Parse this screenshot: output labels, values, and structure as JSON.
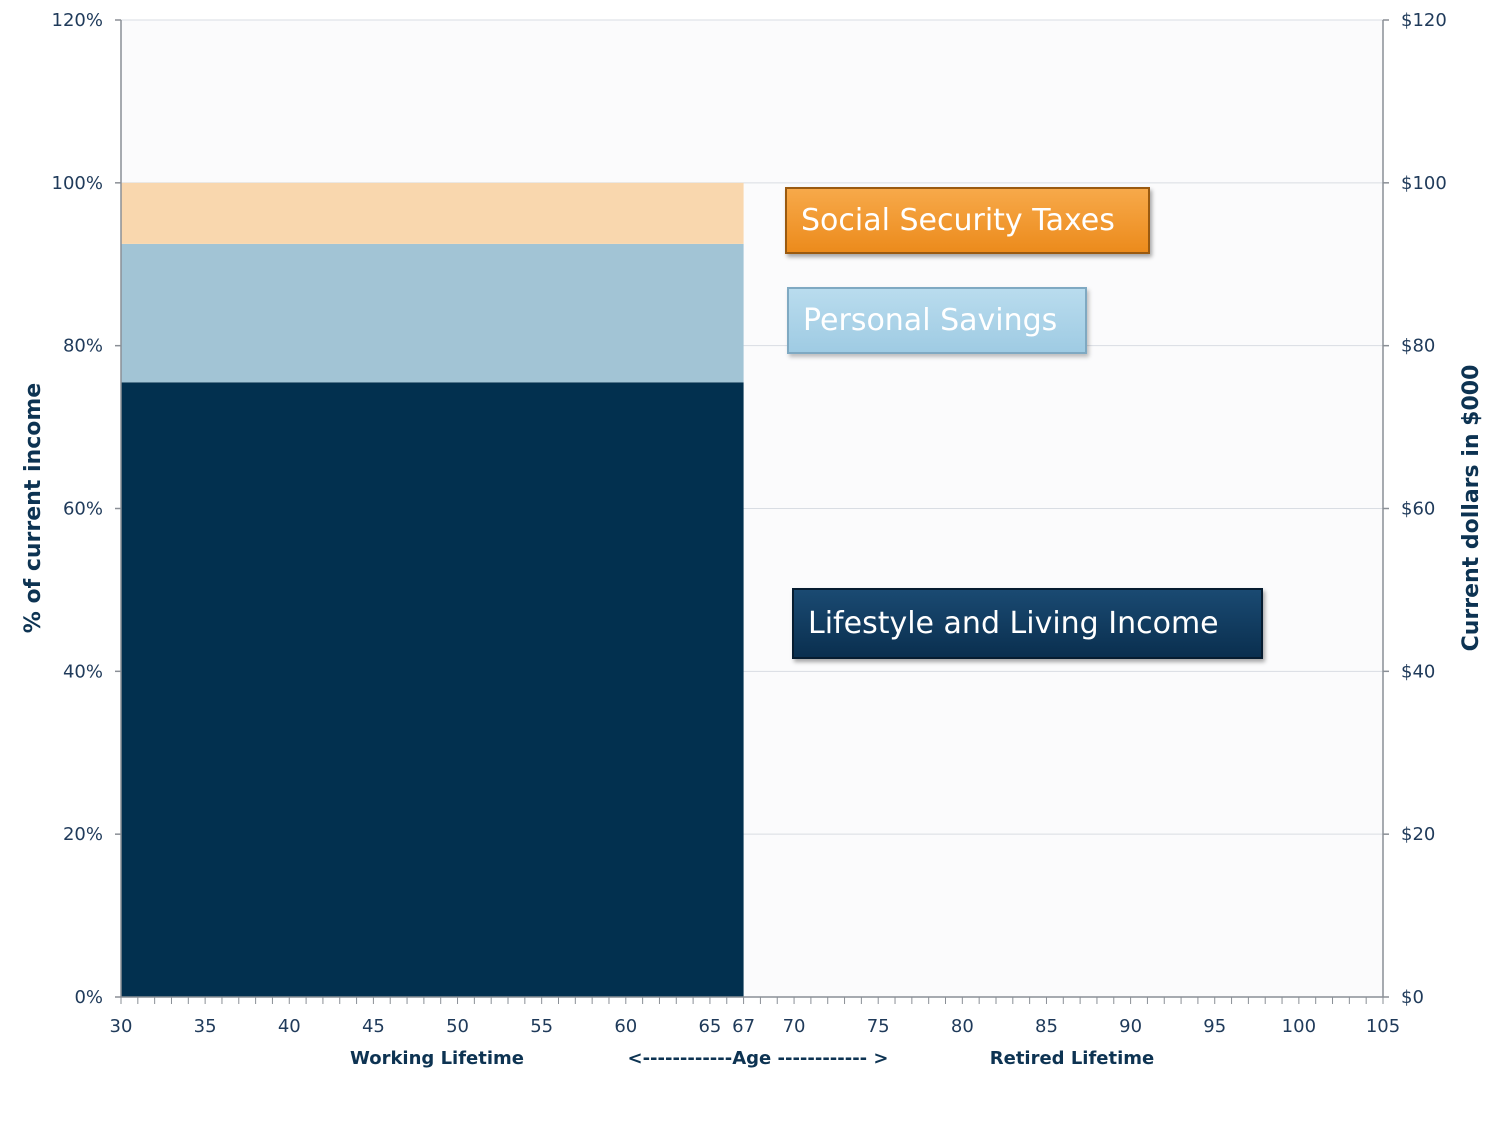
{
  "chart_data": {
    "type": "area",
    "x_ticks": [
      30,
      35,
      40,
      45,
      50,
      55,
      60,
      65,
      67,
      70,
      75,
      80,
      85,
      90,
      95,
      100,
      105
    ],
    "xlim": [
      30,
      105
    ],
    "left_axis": {
      "label": "% of current income",
      "ylim": [
        0,
        120
      ],
      "ticks": [
        "0%",
        "20%",
        "40%",
        "60%",
        "80%",
        "100%",
        "120%"
      ]
    },
    "right_axis": {
      "label": "Current dollars in $000",
      "ylim": [
        0,
        120
      ],
      "ticks": [
        "$0",
        "$20",
        "$40",
        "$60",
        "$80",
        "$100",
        "$120"
      ]
    },
    "x_sublabels": {
      "working": "Working Lifetime",
      "age": "<------------Age ------------ >",
      "retired": "Retired Lifetime"
    },
    "series": [
      {
        "name": "Lifestyle and Living Income",
        "x_start": 30,
        "x_end": 67,
        "y_bottom": 0,
        "y_top": 75.5,
        "color": "#02304f"
      },
      {
        "name": "Personal Savings",
        "x_start": 30,
        "x_end": 67,
        "y_bottom": 75.5,
        "y_top": 92.5,
        "color": "#a2c4d5"
      },
      {
        "name": "Social Security Taxes",
        "x_start": 30,
        "x_end": 67,
        "y_bottom": 92.5,
        "y_top": 100,
        "color": "#f9d7ae"
      }
    ],
    "grid": true,
    "legend": "right"
  },
  "legend": {
    "social_security": "Social Security Taxes",
    "personal_savings": "Personal Savings",
    "lifestyle": "Lifestyle and Living Income"
  }
}
